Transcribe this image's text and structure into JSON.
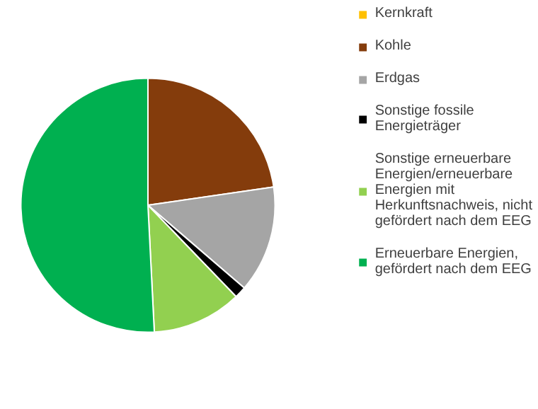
{
  "chart_data": {
    "type": "pie",
    "legend": "right",
    "categories": [
      "Kernkraft",
      "Kohle",
      "Erdgas",
      "Sonstige fossile Energieträger",
      "Sonstige erneuerbare Energien/erneuerbare Energien mit Herkunftsnachweis, nicht gefördert nach dem EEG",
      "Erneuerbare Energien, gefördert nach dem EEG"
    ],
    "values": [
      0,
      22.7,
      13.6,
      1.5,
      11.4,
      50.8
    ],
    "colors": [
      "#ffc000",
      "#843c0c",
      "#a5a5a5",
      "#000000",
      "#92d050",
      "#00b050"
    ]
  }
}
